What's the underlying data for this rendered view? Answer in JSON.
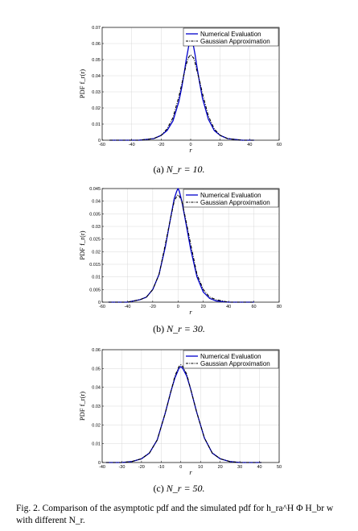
{
  "chart_data": [
    {
      "type": "line",
      "ylabel": "PDF f_r(r)",
      "xlabel": "r",
      "xlim": [
        -60,
        60
      ],
      "ylim": [
        0,
        0.07
      ],
      "xticks": [
        -60,
        -40,
        -20,
        0,
        20,
        40,
        60
      ],
      "xtick_labels": [
        "-60",
        "-40",
        "-20",
        "0",
        "20",
        "40",
        "60"
      ],
      "yticks": [
        0,
        0.01,
        0.02,
        0.03,
        0.04,
        0.05,
        0.06,
        0.07
      ],
      "ytick_labels": [
        "0",
        "0.01",
        "0.02",
        "0.03",
        "0.04",
        "0.05",
        "0.06",
        "0.07"
      ],
      "grid": true,
      "legend_position": "top-right",
      "series": [
        {
          "name": "Numerical Evaluation",
          "color": "#0000cc",
          "style": "solid",
          "x": [
            -55,
            -35,
            -25,
            -20,
            -16,
            -12,
            -8,
            -6,
            -4,
            -3,
            -2,
            -1,
            0,
            1,
            2,
            3,
            4,
            6,
            8,
            12,
            16,
            20,
            25,
            35,
            43
          ],
          "y": [
            0,
            0,
            0.001,
            0.003,
            0.006,
            0.012,
            0.024,
            0.033,
            0.044,
            0.05,
            0.055,
            0.06,
            0.062,
            0.061,
            0.058,
            0.053,
            0.047,
            0.036,
            0.026,
            0.013,
            0.006,
            0.003,
            0.001,
            0,
            0
          ]
        },
        {
          "name": "Gaussian Approximation",
          "color": "#000000",
          "style": "dashdot",
          "x": [
            -55,
            -35,
            -25,
            -20,
            -16,
            -12,
            -8,
            -6,
            -4,
            -3,
            -2,
            -1,
            0,
            1,
            2,
            3,
            4,
            6,
            8,
            12,
            16,
            20,
            25,
            35,
            43
          ],
          "y": [
            0,
            0,
            0.001,
            0.003,
            0.007,
            0.014,
            0.027,
            0.035,
            0.043,
            0.047,
            0.05,
            0.052,
            0.053,
            0.052,
            0.051,
            0.048,
            0.044,
            0.037,
            0.029,
            0.015,
            0.007,
            0.003,
            0.001,
            0,
            0
          ]
        }
      ]
    },
    {
      "type": "line",
      "ylabel": "PDF f_r(r)",
      "xlabel": "r",
      "xlim": [
        -60,
        80
      ],
      "ylim": [
        0,
        0.045
      ],
      "xticks": [
        -60,
        -40,
        -20,
        0,
        20,
        40,
        60,
        80
      ],
      "xtick_labels": [
        "-60",
        "-40",
        "-20",
        "0",
        "20",
        "40",
        "60",
        "80"
      ],
      "yticks": [
        0,
        0.005,
        0.01,
        0.015,
        0.02,
        0.025,
        0.03,
        0.035,
        0.04,
        0.045
      ],
      "ytick_labels": [
        "0",
        "0.005",
        "0.01",
        "0.015",
        "0.02",
        "0.025",
        "0.03",
        "0.035",
        "0.04",
        "0.045"
      ],
      "grid": true,
      "legend_position": "top-right",
      "series": [
        {
          "name": "Numerical Evaluation",
          "color": "#0000cc",
          "style": "solid",
          "x": [
            -55,
            -40,
            -30,
            -25,
            -20,
            -15,
            -10,
            -6,
            -3,
            -1,
            0,
            1,
            3,
            6,
            10,
            15,
            20,
            25,
            30,
            40,
            60
          ],
          "y": [
            0,
            0,
            0.001,
            0.002,
            0.005,
            0.011,
            0.022,
            0.033,
            0.041,
            0.044,
            0.045,
            0.044,
            0.04,
            0.032,
            0.021,
            0.01,
            0.004,
            0.0015,
            0.0005,
            0,
            0
          ]
        },
        {
          "name": "Gaussian Approximation",
          "color": "#000000",
          "style": "dashdot",
          "x": [
            -55,
            -40,
            -30,
            -25,
            -20,
            -15,
            -10,
            -6,
            -3,
            -1,
            0,
            1,
            3,
            6,
            10,
            15,
            20,
            25,
            30,
            40,
            60
          ],
          "y": [
            0,
            0,
            0.001,
            0.002,
            0.005,
            0.011,
            0.023,
            0.033,
            0.04,
            0.042,
            0.0425,
            0.042,
            0.04,
            0.033,
            0.023,
            0.011,
            0.005,
            0.002,
            0.001,
            0,
            0
          ]
        }
      ]
    },
    {
      "type": "line",
      "ylabel": "PDF f_r(r)",
      "xlabel": "r",
      "xlim": [
        -40,
        50
      ],
      "ylim": [
        0,
        0.06
      ],
      "xticks": [
        -40,
        -30,
        -20,
        -10,
        0,
        10,
        20,
        30,
        40,
        50
      ],
      "xtick_labels": [
        "-40",
        "-30",
        "-20",
        "-10",
        "0",
        "10",
        "20",
        "30",
        "40",
        "50"
      ],
      "yticks": [
        0,
        0.01,
        0.02,
        0.03,
        0.04,
        0.05,
        0.06
      ],
      "ytick_labels": [
        "0",
        "0.01",
        "0.02",
        "0.03",
        "0.04",
        "0.05",
        "0.06"
      ],
      "grid": true,
      "legend_position": "top-right",
      "series": [
        {
          "name": "Numerical Evaluation",
          "color": "#0000cc",
          "style": "solid",
          "x": [
            -38,
            -30,
            -25,
            -20,
            -16,
            -12,
            -8,
            -5,
            -3,
            -1,
            0,
            1,
            3,
            5,
            8,
            12,
            16,
            20,
            25,
            30,
            41
          ],
          "y": [
            0,
            0,
            0.0005,
            0.002,
            0.005,
            0.012,
            0.026,
            0.038,
            0.045,
            0.05,
            0.051,
            0.05,
            0.046,
            0.039,
            0.027,
            0.013,
            0.005,
            0.002,
            0.0005,
            0,
            0
          ]
        },
        {
          "name": "Gaussian Approximation",
          "color": "#000000",
          "style": "dashdot",
          "x": [
            -38,
            -30,
            -25,
            -20,
            -16,
            -12,
            -8,
            -5,
            -3,
            -1,
            0,
            1,
            3,
            5,
            8,
            12,
            16,
            20,
            25,
            30,
            41
          ],
          "y": [
            0,
            0,
            0.0005,
            0.002,
            0.005,
            0.012,
            0.026,
            0.038,
            0.046,
            0.051,
            0.052,
            0.051,
            0.047,
            0.039,
            0.027,
            0.013,
            0.005,
            0.002,
            0.0005,
            0,
            0
          ]
        }
      ]
    }
  ],
  "subcaptions": [
    {
      "prefix": "(a)",
      "math": "N_r = 10."
    },
    {
      "prefix": "(b)",
      "math": "N_r = 30."
    },
    {
      "prefix": "(c)",
      "math": "N_r = 50."
    }
  ],
  "figure_caption": {
    "label": "Fig. 2.",
    "text": "Comparison of the asymptotic pdf and the simulated pdf for h_ra^H Φ H_br w with different N_r."
  }
}
